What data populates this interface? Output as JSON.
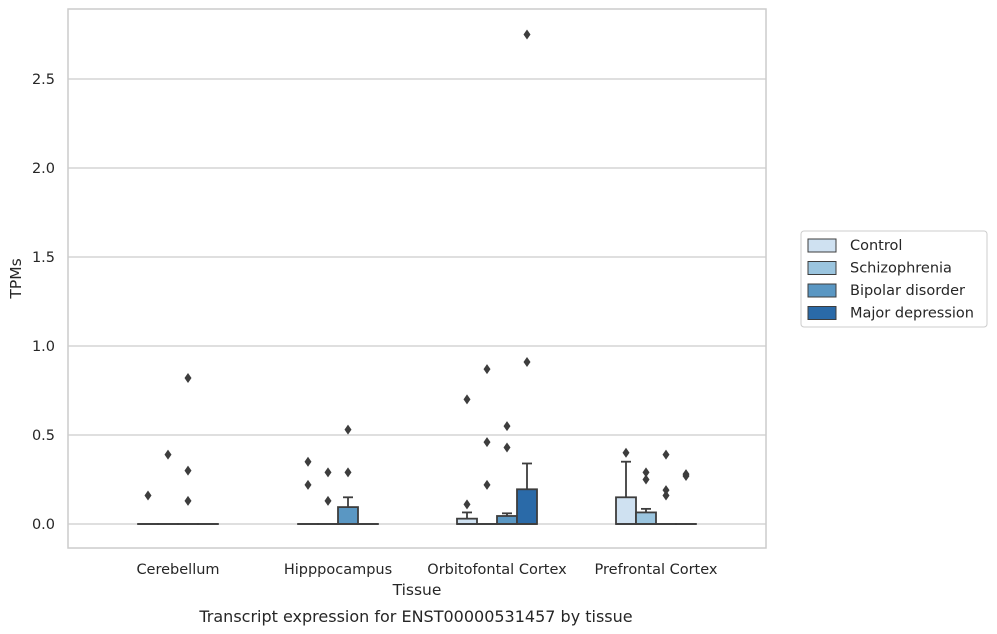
{
  "chart_data": {
    "type": "box",
    "xlabel": "Tissue",
    "ylabel": "TPMs",
    "caption": "Transcript expression for ENST00000531457 by tissue",
    "ylim": [
      -0.13,
      2.9
    ],
    "yticks": [
      0.0,
      0.5,
      1.0,
      1.5,
      2.0,
      2.5
    ],
    "ytick_labels": [
      "0.0",
      "0.5",
      "1.0",
      "1.5",
      "2.0",
      "2.5"
    ],
    "grid": true,
    "legend_position": "right",
    "categories": [
      "Cerebellum",
      "Hipppocampus",
      "Orbitofontal Cortex",
      "Prefrontal Cortex"
    ],
    "series": [
      {
        "name": "Control",
        "color": "#cfe1f1",
        "boxes": [
          {
            "q1": 0.0,
            "median": 0.0,
            "q3": 0.0,
            "whisker_low": 0.0,
            "whisker_high": 0.0,
            "outliers": [
              0.16
            ]
          },
          {
            "q1": 0.0,
            "median": 0.0,
            "q3": 0.0,
            "whisker_low": 0.0,
            "whisker_high": 0.0,
            "outliers": [
              0.35,
              0.22
            ]
          },
          {
            "q1": 0.0,
            "median": 0.0,
            "q3": 0.03,
            "whisker_low": 0.0,
            "whisker_high": 0.065,
            "outliers": [
              0.11,
              0.7
            ]
          },
          {
            "q1": 0.0,
            "median": 0.0,
            "q3": 0.15,
            "whisker_low": 0.0,
            "whisker_high": 0.35,
            "outliers": [
              0.4
            ]
          }
        ]
      },
      {
        "name": "Schizophrenia",
        "color": "#9bc5df",
        "boxes": [
          {
            "q1": 0.0,
            "median": 0.0,
            "q3": 0.0,
            "whisker_low": 0.0,
            "whisker_high": 0.0,
            "outliers": [
              0.39
            ]
          },
          {
            "q1": 0.0,
            "median": 0.0,
            "q3": 0.0,
            "whisker_low": 0.0,
            "whisker_high": 0.0,
            "outliers": [
              0.29,
              0.13
            ]
          },
          {
            "q1": 0.0,
            "median": 0.0,
            "q3": 0.0,
            "whisker_low": 0.0,
            "whisker_high": 0.0,
            "outliers": [
              0.87,
              0.46,
              0.22
            ]
          },
          {
            "q1": 0.0,
            "median": 0.0,
            "q3": 0.065,
            "whisker_low": 0.0,
            "whisker_high": 0.085,
            "outliers": [
              0.29,
              0.25
            ]
          }
        ]
      },
      {
        "name": "Bipolar disorder",
        "color": "#5a97c3",
        "boxes": [
          {
            "q1": 0.0,
            "median": 0.0,
            "q3": 0.0,
            "whisker_low": 0.0,
            "whisker_high": 0.0,
            "outliers": [
              0.82,
              0.3,
              0.13
            ]
          },
          {
            "q1": 0.0,
            "median": 0.0,
            "q3": 0.095,
            "whisker_low": 0.0,
            "whisker_high": 0.15,
            "outliers": [
              0.53,
              0.29
            ]
          },
          {
            "q1": 0.0,
            "median": 0.0,
            "q3": 0.045,
            "whisker_low": 0.0,
            "whisker_high": 0.06,
            "outliers": [
              0.55,
              0.43
            ]
          },
          {
            "q1": 0.0,
            "median": 0.0,
            "q3": 0.0,
            "whisker_low": 0.0,
            "whisker_high": 0.0,
            "outliers": [
              0.39,
              0.19,
              0.16
            ]
          }
        ]
      },
      {
        "name": "Major depression",
        "color": "#2a6aa8",
        "boxes": [
          {
            "q1": 0.0,
            "median": 0.0,
            "q3": 0.0,
            "whisker_low": 0.0,
            "whisker_high": 0.0,
            "outliers": []
          },
          {
            "q1": 0.0,
            "median": 0.0,
            "q3": 0.0,
            "whisker_low": 0.0,
            "whisker_high": 0.0,
            "outliers": []
          },
          {
            "q1": 0.0,
            "median": 0.0,
            "q3": 0.195,
            "whisker_low": 0.0,
            "whisker_high": 0.34,
            "outliers": [
              2.75,
              0.91
            ]
          },
          {
            "q1": 0.0,
            "median": 0.0,
            "q3": 0.0,
            "whisker_low": 0.0,
            "whisker_high": 0.0,
            "outliers": [
              0.28,
              0.27
            ]
          }
        ]
      }
    ]
  }
}
